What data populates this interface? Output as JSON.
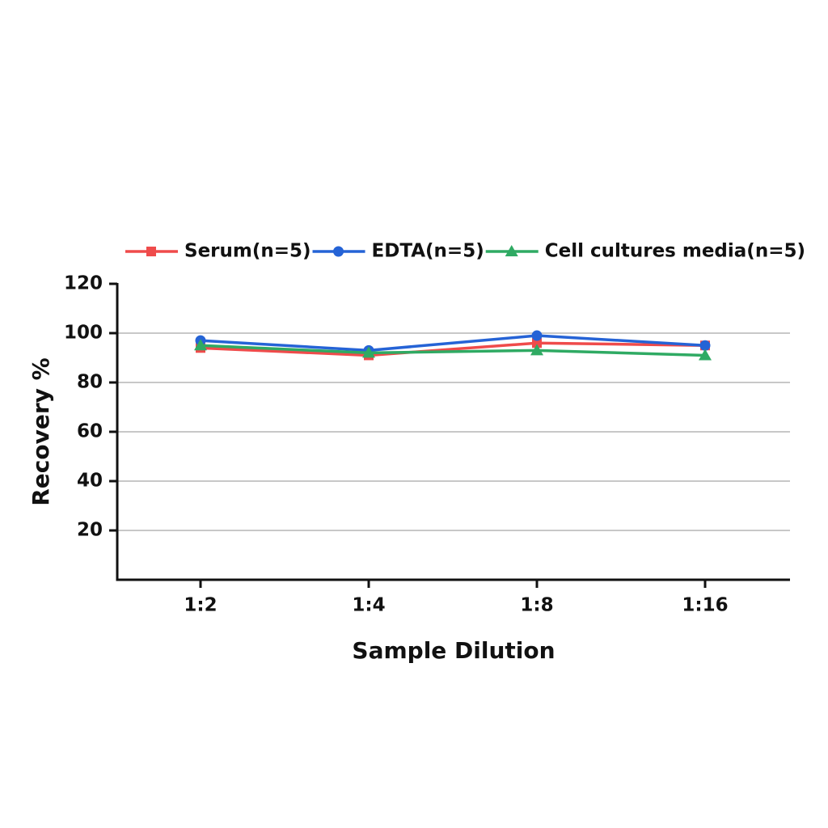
{
  "chart_data": {
    "type": "line",
    "x_label": "Sample Dilution",
    "y_label": "Recovery %",
    "categories": [
      "1:2",
      "1:4",
      "1:8",
      "1:16"
    ],
    "series": [
      {
        "name": "Serum(n=5)",
        "color": "#ef4b4b",
        "marker": "square",
        "values": [
          94,
          91,
          96,
          95
        ]
      },
      {
        "name": "EDTA(n=5)",
        "color": "#2563d6",
        "marker": "circle",
        "values": [
          97,
          93,
          99,
          95
        ]
      },
      {
        "name": "Cell cultures media(n=5)",
        "color": "#2faa63",
        "marker": "triangle",
        "values": [
          95,
          92,
          93,
          91
        ]
      }
    ],
    "ylim": [
      0,
      120
    ],
    "yticks": [
      20,
      40,
      60,
      80,
      100,
      120
    ],
    "grid": true,
    "legend": "top"
  }
}
